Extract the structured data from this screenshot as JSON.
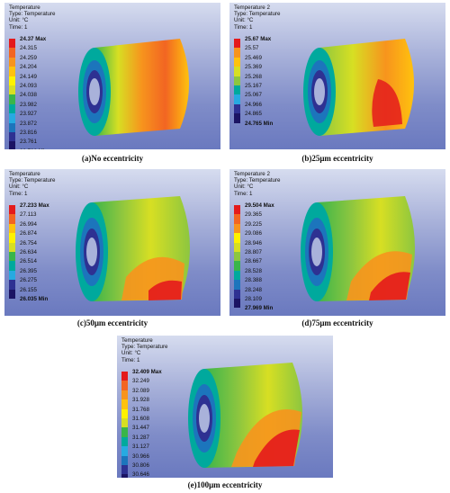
{
  "panels": [
    {
      "header": [
        "Temperature",
        "Type: Temperature",
        "Unit: °C",
        "Time: 1"
      ],
      "legend": [
        "24.37 Max",
        "24.315",
        "24.259",
        "24.204",
        "24.149",
        "24.093",
        "24.038",
        "23.982",
        "23.927",
        "23.872",
        "23.816",
        "23.761",
        "23.706 Min"
      ],
      "caption": "(a)No eccentricity"
    },
    {
      "header": [
        "Temperature 2",
        "Type: Temperature",
        "Unit: °C",
        "Time: 1"
      ],
      "legend": [
        "25.67 Max",
        "25.57",
        "25.469",
        "25.369",
        "25.268",
        "25.167",
        "25.067",
        "24.966",
        "24.865",
        "24.765 Min"
      ],
      "caption": "(b)25μm eccentricity"
    },
    {
      "header": [
        "Temperature",
        "Type: Temperature",
        "Unit: °C",
        "Time: 1"
      ],
      "legend": [
        "27.233 Max",
        "27.113",
        "26.994",
        "26.874",
        "26.754",
        "26.634",
        "26.514",
        "26.395",
        "26.275",
        "26.155",
        "26.035 Min"
      ],
      "caption": "(c)50μm eccentricity"
    },
    {
      "header": [
        "Temperature 2",
        "Type: Temperature",
        "Unit: °C",
        "Time: 1"
      ],
      "legend": [
        "29.504 Max",
        "29.365",
        "29.225",
        "29.086",
        "28.946",
        "28.807",
        "28.667",
        "28.528",
        "28.388",
        "28.248",
        "28.109",
        "27.969 Min"
      ],
      "caption": "(d)75μm eccentricity"
    },
    {
      "header": [
        "Temperature",
        "Type: Temperature",
        "Unit: °C",
        "Time: 1"
      ],
      "legend": [
        "32.409 Max",
        "32.249",
        "32.089",
        "31.928",
        "31.768",
        "31.608",
        "31.447",
        "31.287",
        "31.127",
        "30.966",
        "30.806",
        "30.646",
        "30.485 Min"
      ],
      "caption": "(e)100μm eccentricity"
    }
  ],
  "colors": {
    "scale": [
      "#e41a1c",
      "#f26522",
      "#f7941d",
      "#ffc20e",
      "#fff200",
      "#d7df23",
      "#8dc63f",
      "#39b54a",
      "#00a99d",
      "#27aae1",
      "#1c75bc",
      "#2e3192",
      "#1b1464"
    ]
  }
}
